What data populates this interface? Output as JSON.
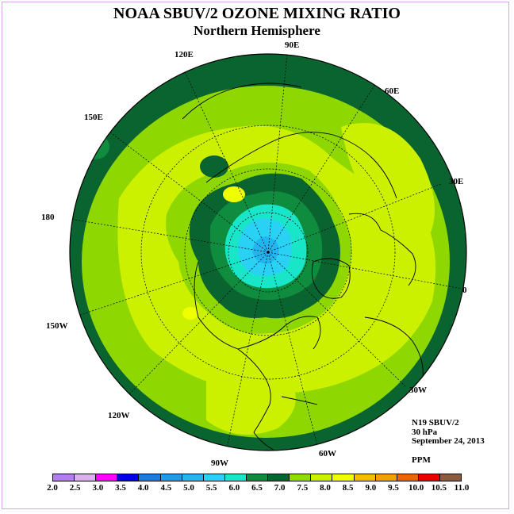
{
  "title": "NOAA SBUV/2 OZONE MIXING RATIO",
  "subtitle": "Northern Hemisphere",
  "longitude_labels": {
    "lon_90e": "90E",
    "lon_120e": "120E",
    "lon_60e": "60E",
    "lon_150e": "150E",
    "lon_30e": "30E",
    "lon_180": "180",
    "lon_0": "0",
    "lon_150w": "150W",
    "lon_30w": "30W",
    "lon_120w": "120W",
    "lon_60w": "60W",
    "lon_90w": "90W"
  },
  "info": {
    "instrument": "N19 SBUV/2",
    "level": "30 hPa",
    "date": "September 24, 2013",
    "units": "PPM"
  },
  "colorbar": {
    "ticks": [
      "2.0",
      "2.5",
      "3.0",
      "3.5",
      "4.0",
      "4.5",
      "5.0",
      "5.5",
      "6.0",
      "6.5",
      "7.0",
      "7.5",
      "8.0",
      "8.5",
      "9.0",
      "9.5",
      "10.0",
      "10.5",
      "11.0"
    ],
    "colors": [
      "#b57cf0",
      "#dcb0ee",
      "#ff00ff",
      "#0000e6",
      "#1a7ae0",
      "#1e9be8",
      "#23b5ef",
      "#29d2f5",
      "#19e6c8",
      "#108c3e",
      "#0a6430",
      "#90dc00",
      "#c8f000",
      "#f0ff00",
      "#f0c000",
      "#f0a000",
      "#f06400",
      "#e60000",
      "#8c5a3c"
    ]
  },
  "colors": {
    "equator_band": "#0a6430",
    "mid_green": "#8fd700",
    "light_yellow": "#cbf000",
    "pole_cyan": "#29d2f5",
    "pole_blue": "#23b5ef",
    "coast": "#000000"
  }
}
